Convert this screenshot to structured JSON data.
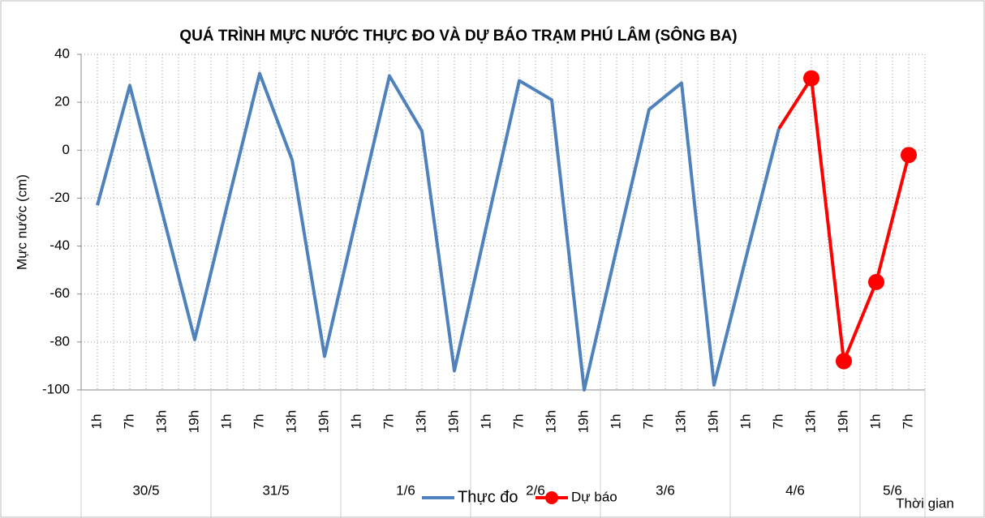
{
  "chart_data": {
    "type": "line",
    "title": "QUÁ TRÌNH MỰC NƯỚC THỰC ĐO VÀ DỰ BÁO TRẠM PHÚ LÂM (SÔNG BA)",
    "y_label": "Mực nước (cm)",
    "x_label": "Thời gian",
    "categories": [
      "1h",
      "7h",
      "13h",
      "19h",
      "1h",
      "7h",
      "13h",
      "19h",
      "1h",
      "7h",
      "13h",
      "19h",
      "1h",
      "7h",
      "13h",
      "19h",
      "1h",
      "7h",
      "13h",
      "19h",
      "1h",
      "7h",
      "13h",
      "19h",
      "1h",
      "7h"
    ],
    "category_groups": [
      {
        "label": "30/5",
        "span": 4
      },
      {
        "label": "31/5",
        "span": 4
      },
      {
        "label": "1/6",
        "span": 4
      },
      {
        "label": "2/6",
        "span": 4
      },
      {
        "label": "3/6",
        "span": 4
      },
      {
        "label": "4/6",
        "span": 4
      },
      {
        "label": "5/6",
        "span": 2
      }
    ],
    "series": [
      {
        "name": "Thực đo",
        "color": "#4f81bd",
        "marker": false,
        "values": [
          -23,
          27,
          -26,
          -79,
          -23,
          32,
          -4,
          -86,
          -27,
          31,
          8,
          -92,
          -31,
          29,
          21,
          -100,
          -41,
          17,
          28,
          -98,
          -44,
          9,
          null,
          null,
          null,
          null
        ]
      },
      {
        "name": "Dự báo",
        "color": "#ff0000",
        "marker": true,
        "values": [
          null,
          null,
          null,
          null,
          null,
          null,
          null,
          null,
          null,
          null,
          null,
          null,
          null,
          null,
          null,
          null,
          null,
          null,
          null,
          null,
          null,
          9,
          30,
          -88,
          -55,
          -2
        ]
      }
    ],
    "ylim": [
      -100,
      40
    ],
    "yticks": [
      -100,
      -80,
      -60,
      -40,
      -20,
      0,
      20,
      40
    ],
    "grid": true,
    "legend": "bottom"
  }
}
